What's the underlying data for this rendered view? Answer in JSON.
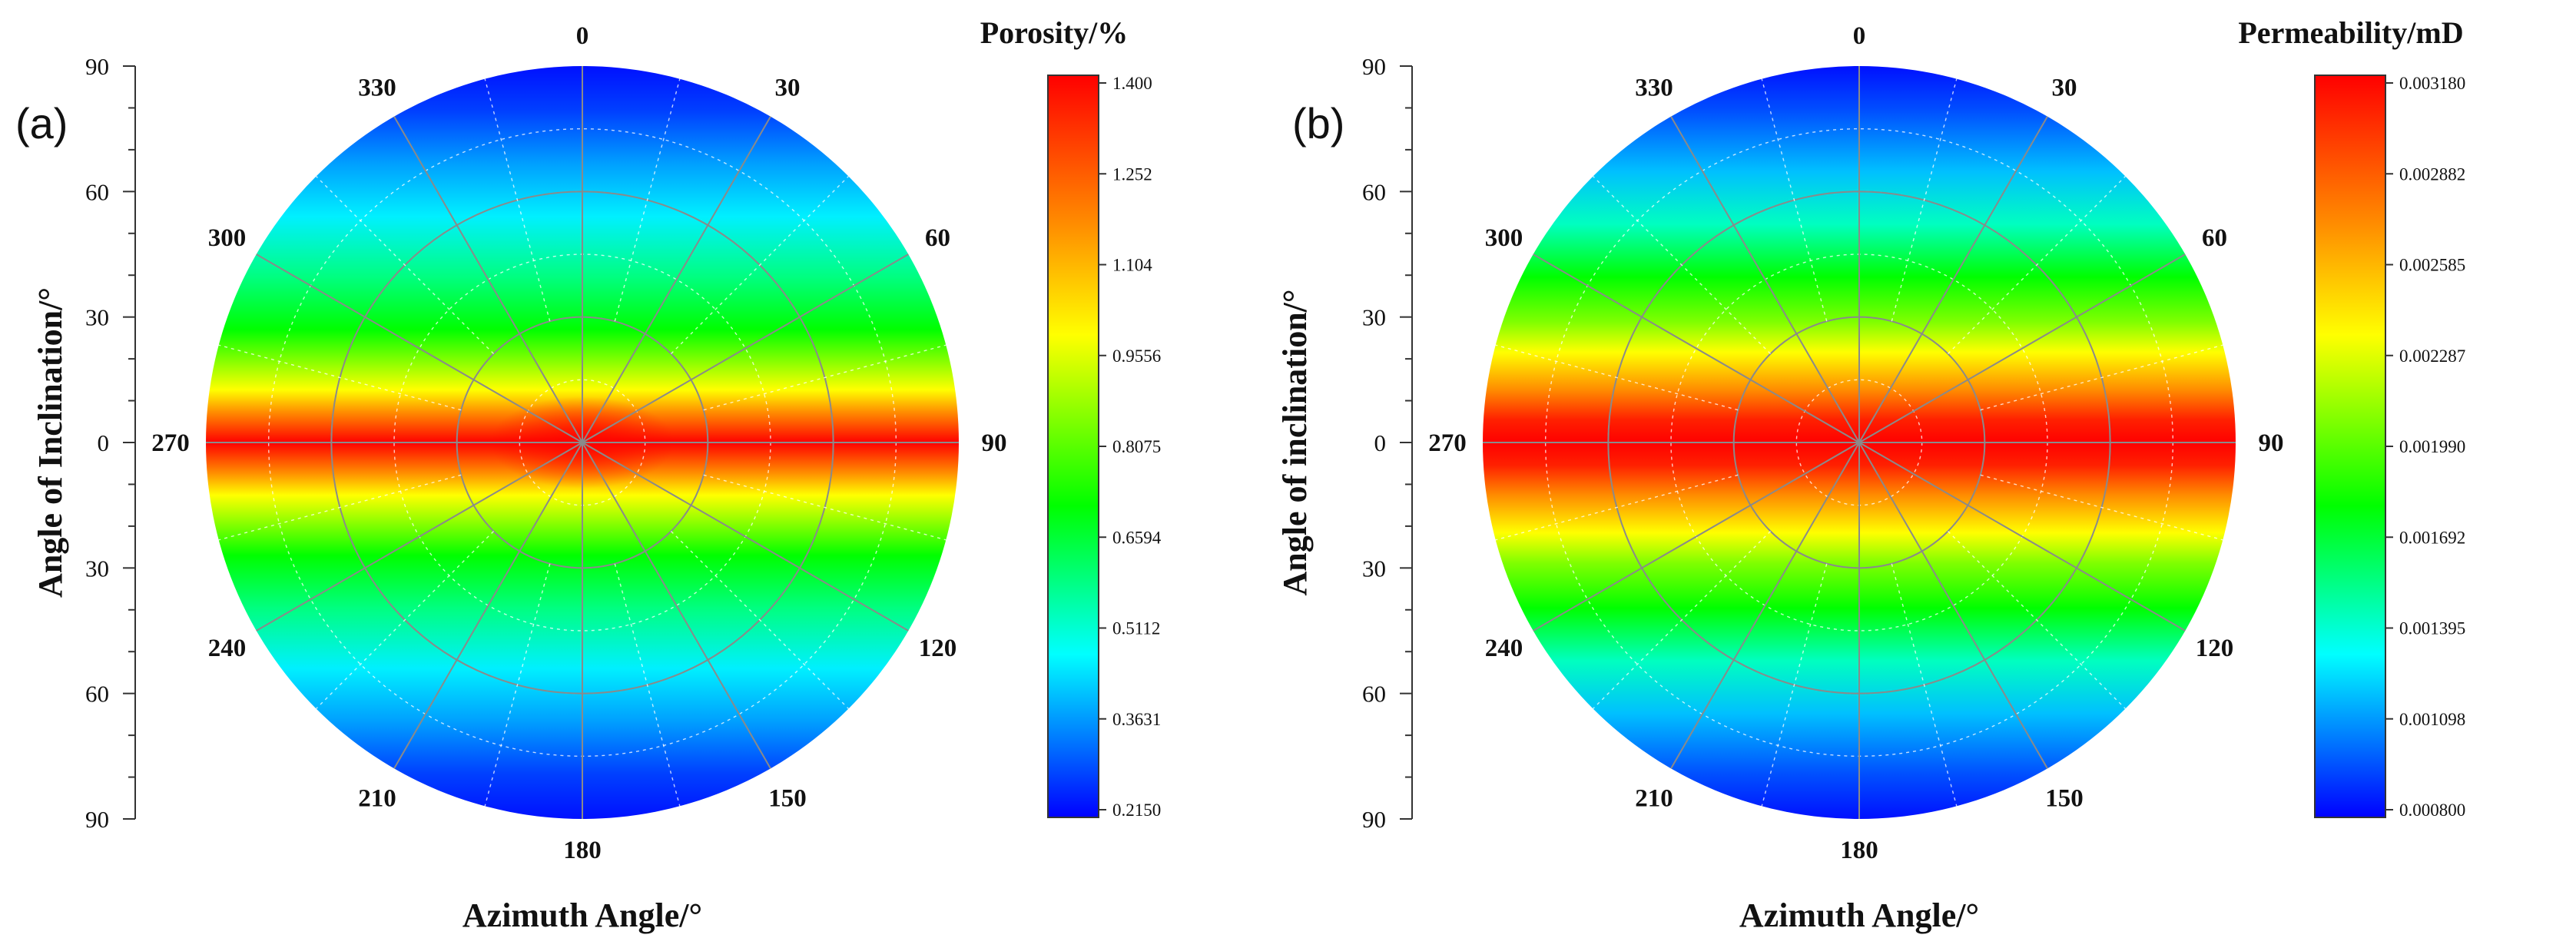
{
  "chart_data": [
    {
      "type": "polar-contour",
      "panel_label": "(a)",
      "quantity": "porosity",
      "colorbar_title": "Porosity/%",
      "ylabel": "Angle of Inclination/°",
      "xlabel": "Azimuth Angle/°",
      "azimuth_labels": [
        "0",
        "30",
        "60",
        "90",
        "120",
        "150",
        "180",
        "210",
        "240",
        "270",
        "300",
        "330"
      ],
      "inclination_ticks": [
        "90",
        "60",
        "30",
        "0",
        "30",
        "60",
        "90"
      ],
      "colorbar_ticks": [
        "1.400",
        "1.252",
        "1.104",
        "0.9556",
        "0.8075",
        "0.6594",
        "0.5112",
        "0.3631",
        "0.2150"
      ],
      "colorbar_range": [
        0.215,
        1.4
      ],
      "pattern": {
        "max_at_inclination_deg": 0,
        "min_at_inclination_deg": 90,
        "equatorial_band_half_width_deg": 20
      }
    },
    {
      "type": "polar-contour",
      "panel_label": "(b)",
      "quantity": "permeability",
      "colorbar_title": "Permeability/mD",
      "ylabel": "Angle of inclination/°",
      "xlabel": "Azimuth Angle/°",
      "azimuth_labels": [
        "0",
        "30",
        "60",
        "90",
        "120",
        "150",
        "180",
        "210",
        "240",
        "270",
        "300",
        "330"
      ],
      "inclination_ticks": [
        "90",
        "60",
        "30",
        "0",
        "30",
        "60",
        "90"
      ],
      "colorbar_ticks": [
        "0.003180",
        "0.002882",
        "0.002585",
        "0.002287",
        "0.001990",
        "0.001692",
        "0.001395",
        "0.001098",
        "0.000800"
      ],
      "colorbar_range": [
        0.0008,
        0.00318
      ],
      "pattern": {
        "max_at_inclination_deg": 0,
        "min_at_inclination_deg": 90,
        "equatorial_band_half_width_deg": 28
      }
    }
  ]
}
